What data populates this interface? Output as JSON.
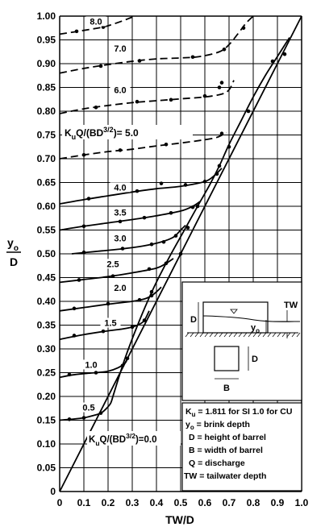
{
  "chart_data": {
    "type": "line",
    "title": "",
    "xlabel": "TW/D",
    "ylabel_main": "y",
    "ylabel_sub": "o",
    "ylabel_den": "D",
    "xlim": [
      0,
      1.0
    ],
    "ylim": [
      0,
      1.0
    ],
    "grid": true,
    "x_ticks": [
      "0",
      "0.1",
      "0.2",
      "0.3",
      "0.4",
      "0.5",
      "0.6",
      "0.7",
      "0.8",
      "0.9",
      "1.0"
    ],
    "y_ticks": [
      "0",
      "0.05",
      "0.10",
      "0.15",
      "0.20",
      "0.25",
      "0.30",
      "0.35",
      "0.40",
      "0.45",
      "0.50",
      "0.55",
      "0.60",
      "0.65",
      "0.70",
      "0.75",
      "0.80",
      "0.85",
      "0.90",
      "0.95",
      "1.00"
    ],
    "series": [
      {
        "label": "0.5",
        "lx": 0.12,
        "ly": 0.172,
        "dashed": false,
        "x": [
          0.0,
          0.05,
          0.1,
          0.14,
          0.17,
          0.19,
          0.21,
          0.22
        ],
        "y": [
          0.15,
          0.152,
          0.155,
          0.16,
          0.165,
          0.173,
          0.185,
          0.2
        ],
        "pts": [
          [
            0.04,
            0.152
          ],
          [
            0.1,
            0.155
          ],
          [
            0.17,
            0.165
          ]
        ]
      },
      {
        "label": "1.0",
        "lx": 0.13,
        "ly": 0.262,
        "dashed": false,
        "x": [
          0.0,
          0.05,
          0.1,
          0.15,
          0.2,
          0.24,
          0.27,
          0.28
        ],
        "y": [
          0.24,
          0.245,
          0.248,
          0.25,
          0.253,
          0.26,
          0.27,
          0.28
        ],
        "pts": [
          [
            0.04,
            0.246
          ],
          [
            0.15,
            0.25
          ],
          [
            0.26,
            0.265
          ]
        ]
      },
      {
        "label": "1.5",
        "lx": 0.21,
        "ly": 0.35,
        "dashed": false,
        "x": [
          0.0,
          0.1,
          0.2,
          0.26,
          0.3,
          0.33,
          0.35,
          0.37
        ],
        "y": [
          0.32,
          0.33,
          0.338,
          0.342,
          0.346,
          0.352,
          0.36,
          0.38
        ],
        "pts": [
          [
            0.06,
            0.328
          ],
          [
            0.18,
            0.337
          ],
          [
            0.3,
            0.346
          ],
          [
            0.35,
            0.36
          ]
        ]
      },
      {
        "label": "2.0",
        "lx": 0.25,
        "ly": 0.424,
        "dashed": false,
        "x": [
          0.0,
          0.1,
          0.2,
          0.3,
          0.35,
          0.38,
          0.4,
          0.42
        ],
        "y": [
          0.38,
          0.387,
          0.394,
          0.4,
          0.405,
          0.412,
          0.42,
          0.43
        ],
        "pts": [
          [
            0.06,
            0.385
          ],
          [
            0.2,
            0.395
          ],
          [
            0.33,
            0.403
          ],
          [
            0.38,
            0.412
          ]
        ]
      },
      {
        "label": "2.5",
        "lx": 0.22,
        "ly": 0.474,
        "dashed": false,
        "x": [
          0.0,
          0.1,
          0.2,
          0.3,
          0.4,
          0.44,
          0.47
        ],
        "y": [
          0.44,
          0.446,
          0.452,
          0.46,
          0.47,
          0.48,
          0.49
        ],
        "pts": [
          [
            0.08,
            0.445
          ],
          [
            0.22,
            0.453
          ],
          [
            0.37,
            0.468
          ],
          [
            0.44,
            0.48
          ]
        ]
      },
      {
        "label": "3.0",
        "lx": 0.25,
        "ly": 0.528,
        "dashed": false,
        "x": [
          0.05,
          0.15,
          0.25,
          0.35,
          0.42,
          0.47,
          0.5,
          0.52
        ],
        "y": [
          0.5,
          0.505,
          0.51,
          0.517,
          0.525,
          0.535,
          0.55,
          0.56
        ],
        "pts": [
          [
            0.1,
            0.503
          ],
          [
            0.26,
            0.511
          ],
          [
            0.38,
            0.52
          ],
          [
            0.43,
            0.525
          ],
          [
            0.48,
            0.538
          ]
        ]
      },
      {
        "label": "3.5",
        "lx": 0.25,
        "ly": 0.582,
        "dashed": false,
        "x": [
          0.0,
          0.1,
          0.2,
          0.3,
          0.4,
          0.5,
          0.55,
          0.58
        ],
        "y": [
          0.55,
          0.558,
          0.565,
          0.572,
          0.58,
          0.59,
          0.6,
          0.61
        ],
        "pts": [
          [
            0.1,
            0.558
          ],
          [
            0.25,
            0.568
          ],
          [
            0.35,
            0.576
          ],
          [
            0.46,
            0.586
          ],
          [
            0.55,
            0.598
          ]
        ]
      },
      {
        "label": "4.0",
        "lx": 0.25,
        "ly": 0.635,
        "dashed": false,
        "x": [
          0.0,
          0.1,
          0.2,
          0.3,
          0.4,
          0.5,
          0.6,
          0.64,
          0.67
        ],
        "y": [
          0.605,
          0.614,
          0.622,
          0.63,
          0.637,
          0.642,
          0.652,
          0.665,
          0.68
        ],
        "pts": [
          [
            0.12,
            0.616
          ],
          [
            0.32,
            0.632
          ],
          [
            0.42,
            0.648
          ],
          [
            0.52,
            0.645
          ],
          [
            0.6,
            0.652
          ],
          [
            0.65,
            0.668
          ]
        ]
      },
      {
        "label": "5.0",
        "lx": 0.33,
        "ly": 0.745,
        "dashed": true,
        "x": [
          0.0,
          0.1,
          0.2,
          0.3,
          0.4,
          0.5,
          0.6,
          0.65,
          0.69
        ],
        "y": [
          0.7,
          0.708,
          0.715,
          0.72,
          0.727,
          0.733,
          0.74,
          0.745,
          0.755
        ],
        "pts": [
          [
            0.1,
            0.708
          ],
          [
            0.25,
            0.718
          ],
          [
            0.44,
            0.73
          ],
          [
            0.67,
            0.753
          ]
        ]
      },
      {
        "label": "6.0",
        "lx": 0.25,
        "ly": 0.84,
        "dashed": true,
        "x": [
          0.0,
          0.1,
          0.2,
          0.3,
          0.4,
          0.5,
          0.6,
          0.67,
          0.7,
          0.72
        ],
        "y": [
          0.795,
          0.805,
          0.812,
          0.818,
          0.822,
          0.826,
          0.83,
          0.836,
          0.845,
          0.865
        ],
        "pts": [
          [
            0.15,
            0.808
          ],
          [
            0.32,
            0.82
          ],
          [
            0.46,
            0.824
          ],
          [
            0.6,
            0.832
          ],
          [
            0.66,
            0.85
          ],
          [
            0.67,
            0.86
          ]
        ]
      },
      {
        "label": "7.0",
        "lx": 0.25,
        "ly": 0.927,
        "dashed": true,
        "x": [
          0.0,
          0.1,
          0.2,
          0.3,
          0.4,
          0.5,
          0.58,
          0.66,
          0.7,
          0.74,
          0.77,
          0.8
        ],
        "y": [
          0.88,
          0.89,
          0.898,
          0.905,
          0.91,
          0.912,
          0.915,
          0.925,
          0.94,
          0.965,
          0.985,
          1.0
        ],
        "pts": [
          [
            0.17,
            0.895
          ],
          [
            0.33,
            0.906
          ],
          [
            0.55,
            0.914
          ],
          [
            0.68,
            0.93
          ],
          [
            0.76,
            0.975
          ]
        ]
      },
      {
        "label": "8.0",
        "lx": 0.15,
        "ly": 0.984,
        "dashed": true,
        "x": [
          0.0,
          0.1,
          0.18,
          0.22,
          0.26,
          0.29,
          0.31
        ],
        "y": [
          0.962,
          0.97,
          0.977,
          0.983,
          0.99,
          0.996,
          1.0
        ],
        "pts": [
          [
            0.07,
            0.968
          ],
          [
            0.18,
            0.977
          ]
        ]
      }
    ],
    "envelope": {
      "label": "0.0",
      "x": [
        0.0,
        1.0
      ],
      "y": [
        0.0,
        1.0
      ]
    },
    "envelope2": {
      "x": [
        0.22,
        0.27,
        0.33,
        0.39,
        0.45,
        0.51,
        0.57,
        0.62,
        0.66,
        0.7,
        0.75,
        0.8,
        0.85,
        0.9,
        0.95
      ],
      "y": [
        0.2,
        0.28,
        0.36,
        0.43,
        0.49,
        0.545,
        0.6,
        0.645,
        0.685,
        0.73,
        0.78,
        0.83,
        0.875,
        0.915,
        0.955
      ],
      "pts": [
        [
          0.28,
          0.28
        ],
        [
          0.38,
          0.42
        ],
        [
          0.5,
          0.5
        ],
        [
          0.53,
          0.555
        ],
        [
          0.57,
          0.6
        ],
        [
          0.66,
          0.685
        ],
        [
          0.7,
          0.725
        ],
        [
          0.78,
          0.8
        ],
        [
          0.88,
          0.905
        ],
        [
          0.93,
          0.92
        ]
      ]
    },
    "label_prefix": "K",
    "label_prefix_sub": "u",
    "label_formula": "Q/(BD",
    "label_formula_sup": "3/2",
    "label_formula_end": ")= 5.0",
    "label_formula_end2": ")=0.0",
    "legend_lines": [
      "K",
      "u",
      " = 1.811 for SI 1.0 for CU",
      "y",
      "o",
      " = brink depth",
      "D = height of barrel",
      "B = width of barrel",
      "Q = discharge",
      "TW = tailwater depth"
    ],
    "inset_labels": {
      "D1": "D",
      "TW": "TW",
      "y": "y",
      "yo": "o",
      "D2": "D",
      "B": "B"
    }
  }
}
